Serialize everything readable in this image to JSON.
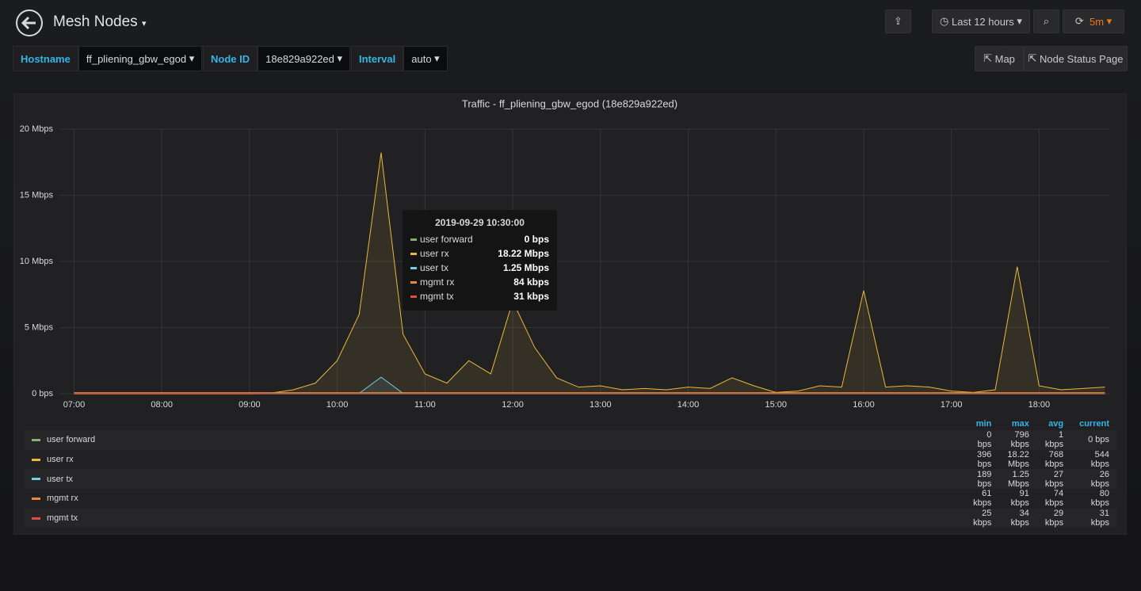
{
  "header": {
    "title": "Mesh Nodes",
    "time_range": "Last 12 hours",
    "refresh": "5m"
  },
  "variables": [
    {
      "label": "Hostname",
      "value": "ff_pliening_gbw_egod"
    },
    {
      "label": "Node ID",
      "value": "18e829a922ed"
    },
    {
      "label": "Interval",
      "value": "auto"
    }
  ],
  "links": [
    "Map",
    "Node Status Page"
  ],
  "chart_data": {
    "type": "line",
    "title": "Traffic - ff_pliening_gbw_egod (18e829a922ed)",
    "x": [
      "07:00",
      "07:15",
      "07:30",
      "07:45",
      "08:00",
      "08:15",
      "08:30",
      "08:45",
      "09:00",
      "09:15",
      "09:30",
      "09:45",
      "10:00",
      "10:15",
      "10:30",
      "10:45",
      "11:00",
      "11:15",
      "11:30",
      "11:45",
      "12:00",
      "12:15",
      "12:30",
      "12:45",
      "13:00",
      "13:15",
      "13:30",
      "13:45",
      "14:00",
      "14:15",
      "14:30",
      "14:45",
      "15:00",
      "15:15",
      "15:30",
      "15:45",
      "16:00",
      "16:15",
      "16:30",
      "16:45",
      "17:00",
      "17:15",
      "17:30",
      "17:45",
      "18:00",
      "18:15",
      "18:30",
      "18:45"
    ],
    "xlim": [
      "06:50",
      "18:48"
    ],
    "xticks": [
      "07:00",
      "08:00",
      "09:00",
      "10:00",
      "11:00",
      "12:00",
      "13:00",
      "14:00",
      "15:00",
      "16:00",
      "17:00",
      "18:00"
    ],
    "ylim": [
      0,
      20
    ],
    "yticks": [
      {
        "value": 0,
        "label": "0 bps"
      },
      {
        "value": 5,
        "label": "5 Mbps"
      },
      {
        "value": 10,
        "label": "10 Mbps"
      },
      {
        "value": 15,
        "label": "15 Mbps"
      },
      {
        "value": 20,
        "label": "20 Mbps"
      }
    ],
    "grid": true,
    "series": [
      {
        "name": "user forward",
        "color": "#7eb26d",
        "values": [
          0,
          0,
          0,
          0,
          0,
          0,
          0,
          0,
          0,
          0,
          0,
          0,
          0,
          0,
          0,
          0,
          0,
          0,
          0,
          0,
          0,
          0,
          0,
          0,
          0,
          0,
          0,
          0,
          0,
          0,
          0,
          0,
          0,
          0,
          0,
          0,
          0,
          0,
          0,
          0,
          0,
          0,
          0,
          0,
          0,
          0,
          0,
          0
        ]
      },
      {
        "name": "user rx",
        "color": "#eab839",
        "values": [
          0,
          0,
          0,
          0,
          0,
          0,
          0,
          0,
          0,
          0.05,
          0.3,
          0.8,
          2.5,
          6,
          18.22,
          4.5,
          1.5,
          0.8,
          2.5,
          1.5,
          7,
          3.5,
          1.2,
          0.5,
          0.6,
          0.3,
          0.4,
          0.3,
          0.5,
          0.4,
          1.2,
          0.6,
          0.1,
          0.2,
          0.6,
          0.5,
          7.8,
          0.5,
          0.6,
          0.5,
          0.2,
          0.1,
          0.3,
          9.6,
          0.6,
          0.3,
          0.4,
          0.5
        ]
      },
      {
        "name": "user tx",
        "color": "#6ed0e0",
        "values": [
          0.03,
          0.03,
          0.03,
          0.03,
          0.03,
          0.03,
          0.03,
          0.03,
          0.03,
          0.03,
          0.03,
          0.03,
          0.03,
          0.03,
          1.25,
          0.03,
          0.03,
          0.03,
          0.03,
          0.03,
          0.03,
          0.03,
          0.03,
          0.03,
          0.03,
          0.03,
          0.03,
          0.03,
          0.03,
          0.03,
          0.03,
          0.03,
          0.03,
          0.03,
          0.03,
          0.03,
          0.03,
          0.03,
          0.03,
          0.03,
          0.03,
          0.03,
          0.03,
          0.03,
          0.03,
          0.03,
          0.03,
          0.03
        ]
      },
      {
        "name": "mgmt rx",
        "color": "#ef843c",
        "values": [
          0.08,
          0.08,
          0.08,
          0.08,
          0.08,
          0.08,
          0.08,
          0.08,
          0.08,
          0.08,
          0.08,
          0.08,
          0.08,
          0.08,
          0.08,
          0.08,
          0.08,
          0.08,
          0.08,
          0.08,
          0.08,
          0.08,
          0.08,
          0.08,
          0.08,
          0.08,
          0.08,
          0.08,
          0.08,
          0.08,
          0.08,
          0.08,
          0.08,
          0.08,
          0.08,
          0.08,
          0.08,
          0.08,
          0.08,
          0.08,
          0.08,
          0.08,
          0.08,
          0.08,
          0.08,
          0.08,
          0.08,
          0.08
        ]
      },
      {
        "name": "mgmt tx",
        "color": "#e24d42",
        "values": [
          0.03,
          0.03,
          0.03,
          0.03,
          0.03,
          0.03,
          0.03,
          0.03,
          0.03,
          0.03,
          0.03,
          0.03,
          0.03,
          0.03,
          0.03,
          0.03,
          0.03,
          0.03,
          0.03,
          0.03,
          0.03,
          0.03,
          0.03,
          0.03,
          0.03,
          0.03,
          0.03,
          0.03,
          0.03,
          0.03,
          0.03,
          0.03,
          0.03,
          0.03,
          0.03,
          0.03,
          0.03,
          0.03,
          0.03,
          0.03,
          0.03,
          0.03,
          0.03,
          0.03,
          0.03,
          0.03,
          0.03,
          0.03
        ]
      }
    ],
    "tooltip": {
      "title": "2019-09-29 10:30:00",
      "values": [
        "0 bps",
        "18.22 Mbps",
        "1.25 Mbps",
        "84 kbps",
        "31 kbps"
      ]
    },
    "legend_table": {
      "columns": [
        "min",
        "max",
        "avg",
        "current"
      ],
      "rows": [
        [
          "0 bps",
          "796 kbps",
          "1 kbps",
          "0 bps"
        ],
        [
          "396 bps",
          "18.22 Mbps",
          "768 kbps",
          "544 kbps"
        ],
        [
          "189 bps",
          "1.25 Mbps",
          "27 kbps",
          "26 kbps"
        ],
        [
          "61 kbps",
          "91 kbps",
          "74 kbps",
          "80 kbps"
        ],
        [
          "25 kbps",
          "34 kbps",
          "29 kbps",
          "31 kbps"
        ]
      ]
    }
  }
}
